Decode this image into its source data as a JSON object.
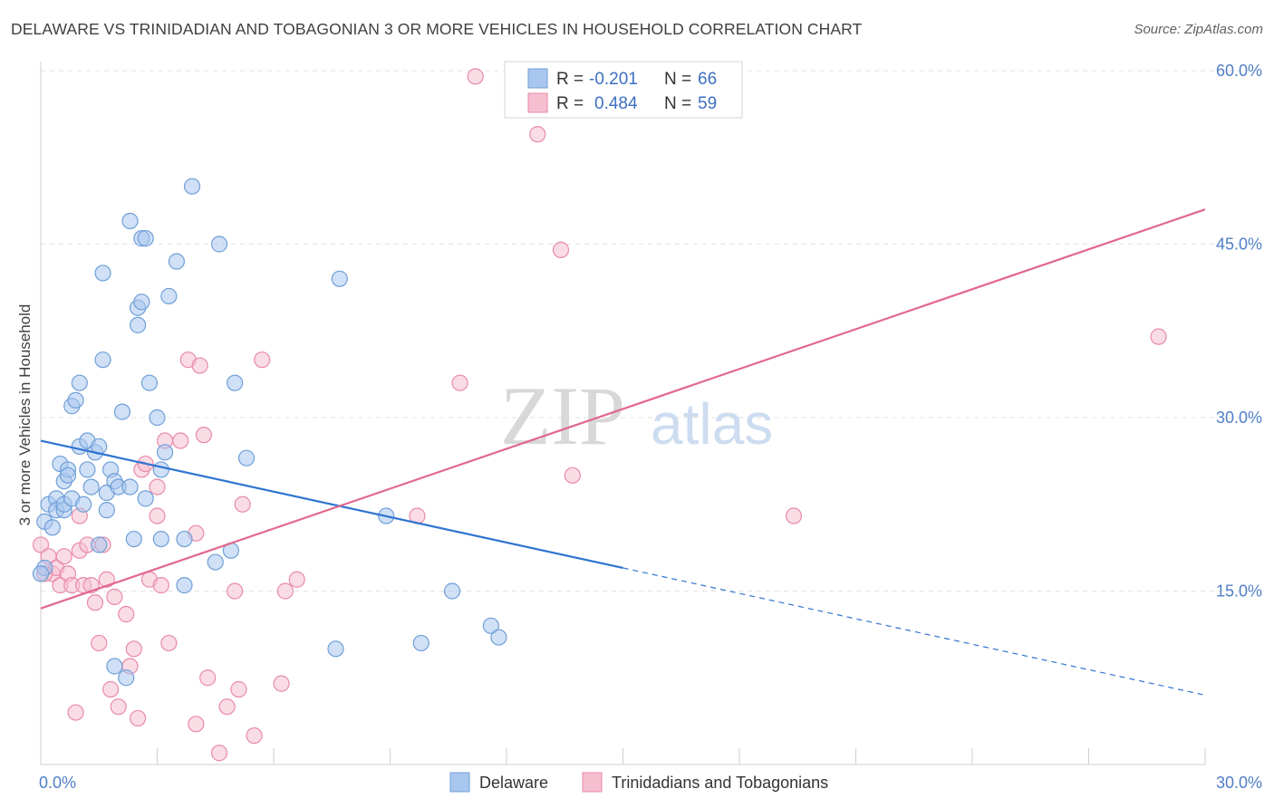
{
  "header": {
    "title": "DELAWARE VS TRINIDADIAN AND TOBAGONIAN 3 OR MORE VEHICLES IN HOUSEHOLD CORRELATION CHART",
    "source": "Source: ZipAtlas.com"
  },
  "watermark": {
    "zip": "ZIP",
    "atlas": "atlas"
  },
  "colors": {
    "blue_fill": "#a9c7ee",
    "blue_stroke": "#6f9fd8",
    "blue_line": "#2f74d0",
    "pink_fill": "#f6bfd0",
    "pink_stroke": "#e88aaa",
    "pink_line": "#e2678f",
    "axis_text": "#4f7fc8",
    "grid": "#e2e2e2"
  },
  "chart_data": {
    "type": "scatter",
    "title": "DELAWARE VS TRINIDADIAN AND TOBAGONIAN 3 OR MORE VEHICLES IN HOUSEHOLD CORRELATION CHART",
    "xlabel": "",
    "ylabel": "3 or more Vehicles in Household",
    "xlim": [
      0,
      30
    ],
    "ylim": [
      0,
      60
    ],
    "x_tick_labels": [
      "0.0%",
      "30.0%"
    ],
    "y_ticks": [
      15,
      30,
      45,
      60
    ],
    "y_tick_labels": [
      "15.0%",
      "30.0%",
      "45.0%",
      "60.0%"
    ],
    "grid": true,
    "legend_position": "top-center",
    "legend": [
      {
        "r_label": "R =",
        "r_value": "-0.201",
        "n_label": "N =",
        "n_value": "66"
      },
      {
        "r_label": "R =",
        "r_value": "0.484",
        "n_label": "N =",
        "n_value": "59"
      }
    ],
    "series": [
      {
        "name": "Delaware",
        "color": "#a9c7ee",
        "trend": {
          "x_start": 0,
          "y_start": 28.0,
          "x_solid_end": 15,
          "y_solid_end": 17.0,
          "x_end": 30,
          "y_end": 6.0
        },
        "points": [
          [
            0.1,
            21.0
          ],
          [
            0.1,
            17.0
          ],
          [
            0.2,
            22.5
          ],
          [
            0.3,
            20.5
          ],
          [
            0.4,
            23.0
          ],
          [
            0.4,
            22.0
          ],
          [
            0.5,
            26.0
          ],
          [
            0.6,
            22.0
          ],
          [
            0.6,
            22.5
          ],
          [
            0.6,
            24.5
          ],
          [
            0.7,
            25.5
          ],
          [
            0.7,
            25.0
          ],
          [
            0.8,
            31.0
          ],
          [
            0.8,
            23.0
          ],
          [
            0.9,
            31.5
          ],
          [
            1.0,
            27.5
          ],
          [
            1.0,
            33.0
          ],
          [
            1.1,
            22.5
          ],
          [
            1.2,
            28.0
          ],
          [
            1.2,
            25.5
          ],
          [
            1.3,
            24.0
          ],
          [
            1.4,
            27.0
          ],
          [
            1.5,
            19.0
          ],
          [
            1.5,
            27.5
          ],
          [
            1.6,
            42.5
          ],
          [
            1.6,
            35.0
          ],
          [
            1.7,
            23.5
          ],
          [
            1.7,
            22.0
          ],
          [
            1.8,
            25.5
          ],
          [
            1.9,
            8.5
          ],
          [
            1.9,
            24.5
          ],
          [
            2.0,
            24.0
          ],
          [
            2.1,
            30.5
          ],
          [
            2.2,
            7.5
          ],
          [
            2.3,
            24.0
          ],
          [
            2.3,
            47.0
          ],
          [
            2.4,
            19.5
          ],
          [
            2.5,
            39.5
          ],
          [
            2.5,
            38.0
          ],
          [
            2.6,
            40.0
          ],
          [
            2.6,
            45.5
          ],
          [
            2.7,
            45.5
          ],
          [
            2.7,
            23.0
          ],
          [
            2.8,
            33.0
          ],
          [
            3.0,
            30.0
          ],
          [
            3.1,
            25.5
          ],
          [
            3.1,
            19.5
          ],
          [
            3.2,
            27.0
          ],
          [
            3.3,
            40.5
          ],
          [
            3.5,
            43.5
          ],
          [
            3.7,
            19.5
          ],
          [
            3.7,
            15.5
          ],
          [
            3.9,
            50.0
          ],
          [
            4.5,
            17.5
          ],
          [
            4.6,
            45.0
          ],
          [
            4.9,
            18.5
          ],
          [
            5.0,
            33.0
          ],
          [
            5.3,
            26.5
          ],
          [
            7.6,
            10.0
          ],
          [
            7.7,
            42.0
          ],
          [
            8.9,
            21.5
          ],
          [
            9.8,
            10.5
          ],
          [
            10.6,
            15.0
          ],
          [
            11.6,
            12.0
          ],
          [
            11.8,
            11.0
          ],
          [
            0.0,
            16.5
          ]
        ]
      },
      {
        "name": "Trinidadians and Tobagonians",
        "color": "#f6bfd0",
        "trend": {
          "x_start": 0,
          "y_start": 13.5,
          "x_end": 30,
          "y_end": 48.0
        },
        "points": [
          [
            0.0,
            19.0
          ],
          [
            0.2,
            18.0
          ],
          [
            0.3,
            16.5
          ],
          [
            0.4,
            17.0
          ],
          [
            0.5,
            15.5
          ],
          [
            0.6,
            18.0
          ],
          [
            0.7,
            16.5
          ],
          [
            0.8,
            15.5
          ],
          [
            0.9,
            4.5
          ],
          [
            1.0,
            18.5
          ],
          [
            1.0,
            21.5
          ],
          [
            1.1,
            15.5
          ],
          [
            1.2,
            19.0
          ],
          [
            1.3,
            15.5
          ],
          [
            1.4,
            14.0
          ],
          [
            1.5,
            10.5
          ],
          [
            1.6,
            19.0
          ],
          [
            1.7,
            16.0
          ],
          [
            1.8,
            6.5
          ],
          [
            1.9,
            14.5
          ],
          [
            2.0,
            5.0
          ],
          [
            2.2,
            13.0
          ],
          [
            2.3,
            8.5
          ],
          [
            2.4,
            10.0
          ],
          [
            2.5,
            4.0
          ],
          [
            2.6,
            25.5
          ],
          [
            2.7,
            26.0
          ],
          [
            2.8,
            16.0
          ],
          [
            3.0,
            24.0
          ],
          [
            3.0,
            21.5
          ],
          [
            3.1,
            15.5
          ],
          [
            3.2,
            28.0
          ],
          [
            3.3,
            10.5
          ],
          [
            3.6,
            28.0
          ],
          [
            3.8,
            35.0
          ],
          [
            4.0,
            20.0
          ],
          [
            4.0,
            3.5
          ],
          [
            4.1,
            34.5
          ],
          [
            4.2,
            28.5
          ],
          [
            4.3,
            7.5
          ],
          [
            4.6,
            1.0
          ],
          [
            4.8,
            5.0
          ],
          [
            5.0,
            15.0
          ],
          [
            5.1,
            6.5
          ],
          [
            5.2,
            22.5
          ],
          [
            5.5,
            2.5
          ],
          [
            5.7,
            35.0
          ],
          [
            6.2,
            7.0
          ],
          [
            6.3,
            15.0
          ],
          [
            6.6,
            16.0
          ],
          [
            9.7,
            21.5
          ],
          [
            10.8,
            33.0
          ],
          [
            11.2,
            59.5
          ],
          [
            12.8,
            54.5
          ],
          [
            13.4,
            44.5
          ],
          [
            13.7,
            25.0
          ],
          [
            19.4,
            21.5
          ],
          [
            28.8,
            37.0
          ],
          [
            0.1,
            16.5
          ]
        ]
      }
    ]
  }
}
